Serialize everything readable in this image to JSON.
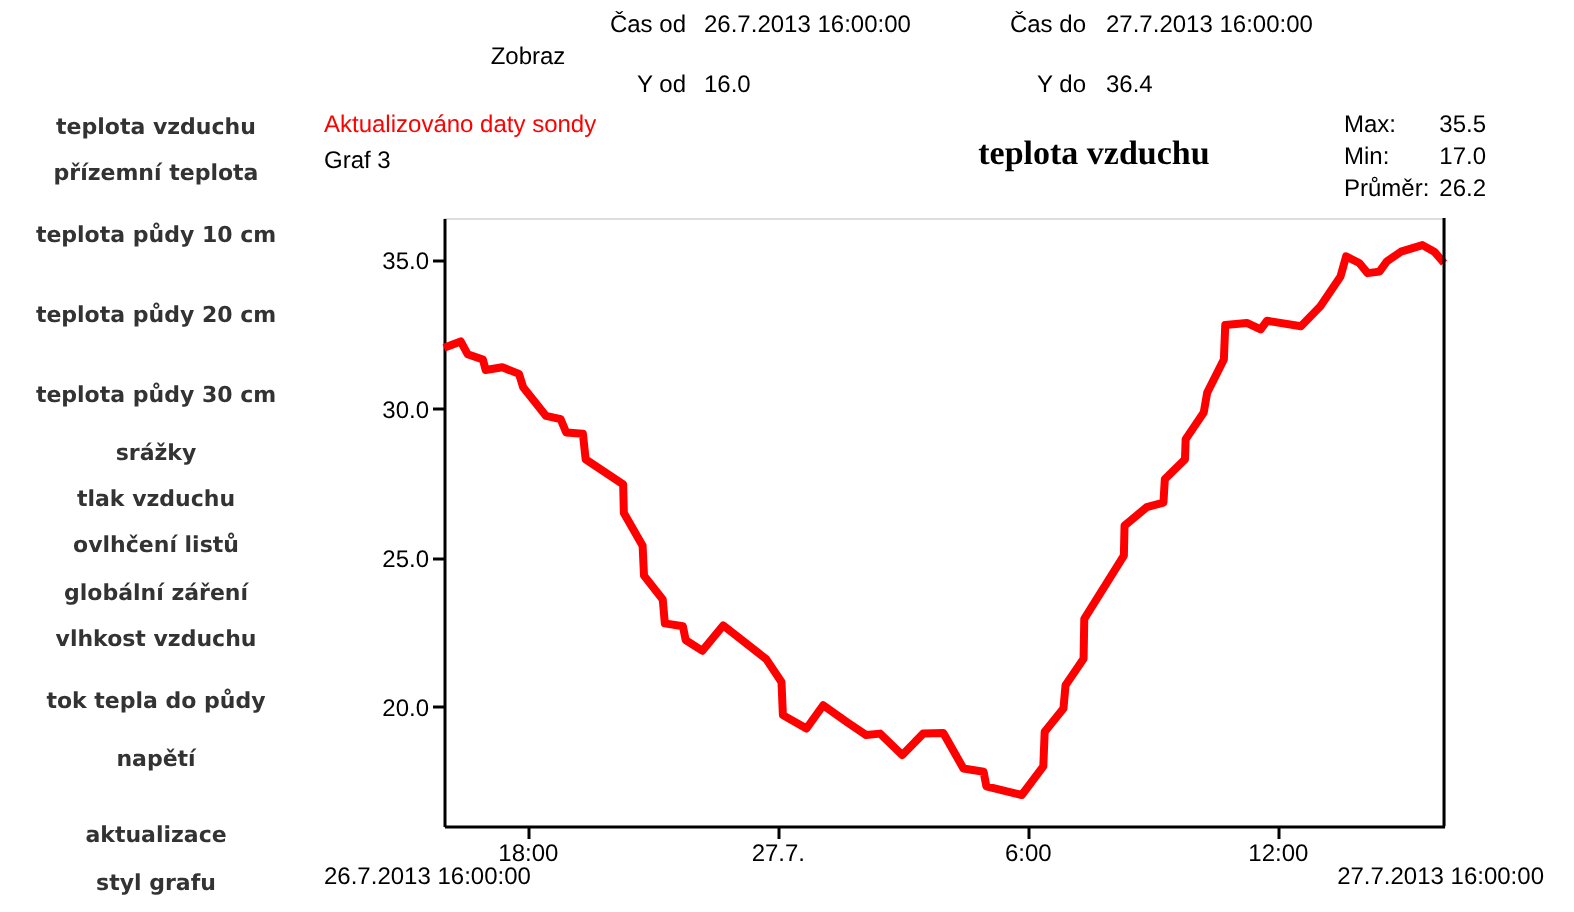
{
  "chart_data": {
    "type": "line",
    "title": "teplota vzduchu",
    "x": [
      "2013-07-26T16:00",
      "2013-07-26T16:24",
      "2013-07-26T16:34",
      "2013-07-26T16:56",
      "2013-07-26T17:00",
      "2013-07-26T17:24",
      "2013-07-26T17:48",
      "2013-07-26T17:54",
      "2013-07-26T18:27",
      "2013-07-26T18:48",
      "2013-07-26T18:56",
      "2013-07-26T19:20",
      "2013-07-26T19:24",
      "2013-07-26T20:18",
      "2013-07-26T20:19",
      "2013-07-26T20:46",
      "2013-07-26T20:48",
      "2013-07-26T21:15",
      "2013-07-26T21:18",
      "2013-07-26T21:44",
      "2013-07-26T21:48",
      "2013-07-26T22:12",
      "2013-07-26T22:42",
      "2013-07-26T23:44",
      "2013-07-27T00:06",
      "2013-07-27T00:08",
      "2013-07-27T00:42",
      "2013-07-27T01:06",
      "2013-07-27T01:40",
      "2013-07-27T02:08",
      "2013-07-27T02:28",
      "2013-07-27T03:00",
      "2013-07-27T03:30",
      "2013-07-27T03:59",
      "2013-07-27T04:28",
      "2013-07-27T04:57",
      "2013-07-27T05:01",
      "2013-07-27T05:52",
      "2013-07-27T06:23",
      "2013-07-27T06:25",
      "2013-07-27T06:52",
      "2013-07-27T06:55",
      "2013-07-27T07:21",
      "2013-07-27T07:22",
      "2013-07-27T08:19",
      "2013-07-27T08:20",
      "2013-07-27T08:52",
      "2013-07-27T09:16",
      "2013-07-27T09:18",
      "2013-07-27T09:47",
      "2013-07-27T09:48",
      "2013-07-27T10:14",
      "2013-07-27T10:19",
      "2013-07-27T10:43",
      "2013-07-27T10:45",
      "2013-07-27T11:16",
      "2013-07-27T11:36",
      "2013-07-27T11:45",
      "2013-07-27T12:34",
      "2013-07-27T13:02",
      "2013-07-27T13:31",
      "2013-07-27T13:39",
      "2013-07-27T13:58",
      "2013-07-27T14:10",
      "2013-07-27T14:27",
      "2013-07-27T14:38",
      "2013-07-27T14:58",
      "2013-07-27T15:29",
      "2013-07-27T15:46",
      "2013-07-27T16:00"
    ],
    "series": [
      {
        "color": "#ff0000",
        "values": [
          32.05,
          32.26,
          31.83,
          31.65,
          31.3,
          31.39,
          31.17,
          30.72,
          29.76,
          29.65,
          29.2,
          29.16,
          28.3,
          27.46,
          26.5,
          25.4,
          24.4,
          23.6,
          22.8,
          22.7,
          22.24,
          21.88,
          22.73,
          21.6,
          20.83,
          19.72,
          19.27,
          20.05,
          19.49,
          19.05,
          19.1,
          18.38,
          19.1,
          19.12,
          17.93,
          17.82,
          17.33,
          17.04,
          18.0,
          19.16,
          19.94,
          20.72,
          21.61,
          22.95,
          25.07,
          26.08,
          26.7,
          26.85,
          27.64,
          28.3,
          28.98,
          29.87,
          30.54,
          31.65,
          32.81,
          32.88,
          32.66,
          32.95,
          32.77,
          33.44,
          34.44,
          35.11,
          34.89,
          34.55,
          34.6,
          34.95,
          35.27,
          35.49,
          35.27,
          34.89
        ]
      }
    ],
    "xlim": [
      "2013-07-26T16:00",
      "2013-07-27T16:00"
    ],
    "xticks": [
      {
        "value": "2013-07-26T18:00",
        "label": "18:00"
      },
      {
        "value": "2013-07-27T00:00",
        "label": "27.7."
      },
      {
        "value": "2013-07-27T06:00",
        "label": "6:00"
      },
      {
        "value": "2013-07-27T12:00",
        "label": "12:00"
      }
    ],
    "ylim": [
      16.0,
      36.4
    ],
    "yticks": [
      {
        "value": 20,
        "label": "20.0"
      },
      {
        "value": 25,
        "label": "25.0"
      },
      {
        "value": 30,
        "label": "30.0"
      },
      {
        "value": 35,
        "label": "35.0"
      }
    ],
    "grid": false,
    "marker": "none",
    "line_style": "solid",
    "annotations": [
      "Zobraz",
      "Čas od",
      "26.7.2013 16:00:00",
      "Čas do",
      "27.7.2013 16:00:00",
      "Y od",
      "16.0",
      "Y do",
      "36.4",
      "Aktualizováno daty sondy",
      "Graf 3",
      "Max:",
      "35.5",
      "Min:",
      "17.0",
      "Průměr:",
      "26.2",
      "26.7.2013 16:00:00",
      "27.7.2013 16:00:00",
      "teplota vzduchu",
      "přízemní teplota",
      "teplota půdy 10 cm",
      "teplota půdy 20 cm",
      "teplota půdy 30 cm",
      "srážky",
      "tlak vzduchu",
      "ovlhčení listů",
      "globální záření",
      "vlhkost vzduchu",
      "tok tepla do půdy",
      "napětí",
      "aktualizace",
      "styl grafu"
    ]
  }
}
